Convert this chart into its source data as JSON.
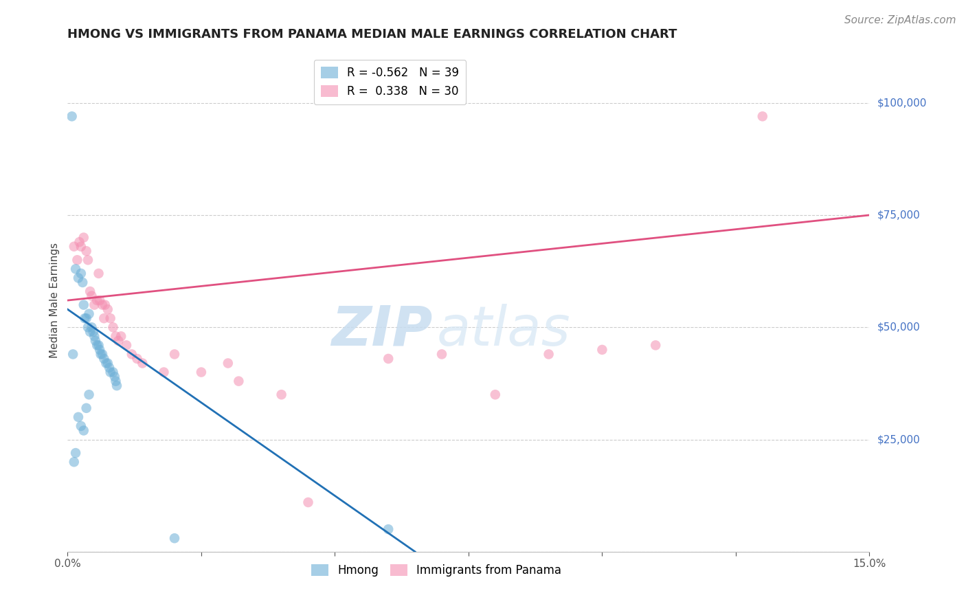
{
  "title": "HMONG VS IMMIGRANTS FROM PANAMA MEDIAN MALE EARNINGS CORRELATION CHART",
  "source": "Source: ZipAtlas.com",
  "ylabel_label": "Median Male Earnings",
  "xlim": [
    0.0,
    0.15
  ],
  "ylim": [
    0,
    112000
  ],
  "xticks": [
    0.0,
    0.025,
    0.05,
    0.075,
    0.1,
    0.125,
    0.15
  ],
  "xticklabels": [
    "0.0%",
    "",
    "",
    "",
    "",
    "",
    "15.0%"
  ],
  "ytick_values": [
    0,
    25000,
    50000,
    75000,
    100000
  ],
  "ytick_labels": [
    "",
    "$25,000",
    "$50,000",
    "$75,000",
    "$100,000"
  ],
  "watermark_zip": "ZIP",
  "watermark_atlas": "atlas",
  "hmong_color": "#6baed6",
  "panama_color": "#f48fb1",
  "hmong_scatter": [
    [
      0.0008,
      97000
    ],
    [
      0.0015,
      63000
    ],
    [
      0.002,
      61000
    ],
    [
      0.0025,
      62000
    ],
    [
      0.0028,
      60000
    ],
    [
      0.003,
      55000
    ],
    [
      0.0032,
      52000
    ],
    [
      0.0035,
      52000
    ],
    [
      0.0038,
      50000
    ],
    [
      0.004,
      53000
    ],
    [
      0.0042,
      49000
    ],
    [
      0.0045,
      50000
    ],
    [
      0.0048,
      49000
    ],
    [
      0.005,
      48000
    ],
    [
      0.0052,
      47000
    ],
    [
      0.0055,
      46000
    ],
    [
      0.0058,
      46000
    ],
    [
      0.006,
      45000
    ],
    [
      0.0062,
      44000
    ],
    [
      0.0065,
      44000
    ],
    [
      0.0068,
      43000
    ],
    [
      0.0072,
      42000
    ],
    [
      0.0075,
      42000
    ],
    [
      0.0078,
      41000
    ],
    [
      0.008,
      40000
    ],
    [
      0.0085,
      40000
    ],
    [
      0.0088,
      39000
    ],
    [
      0.009,
      38000
    ],
    [
      0.0092,
      37000
    ],
    [
      0.0015,
      22000
    ],
    [
      0.0012,
      20000
    ],
    [
      0.002,
      30000
    ],
    [
      0.0025,
      28000
    ],
    [
      0.003,
      27000
    ],
    [
      0.0035,
      32000
    ],
    [
      0.004,
      35000
    ],
    [
      0.001,
      44000
    ],
    [
      0.06,
      5000
    ],
    [
      0.02,
      3000
    ]
  ],
  "panama_scatter": [
    [
      0.0012,
      68000
    ],
    [
      0.0018,
      65000
    ],
    [
      0.0022,
      69000
    ],
    [
      0.0025,
      68000
    ],
    [
      0.003,
      70000
    ],
    [
      0.0035,
      67000
    ],
    [
      0.0038,
      65000
    ],
    [
      0.0042,
      58000
    ],
    [
      0.0045,
      57000
    ],
    [
      0.005,
      55000
    ],
    [
      0.0055,
      56000
    ],
    [
      0.0058,
      62000
    ],
    [
      0.006,
      56000
    ],
    [
      0.0065,
      55000
    ],
    [
      0.0068,
      52000
    ],
    [
      0.007,
      55000
    ],
    [
      0.0075,
      54000
    ],
    [
      0.008,
      52000
    ],
    [
      0.0085,
      50000
    ],
    [
      0.009,
      48000
    ],
    [
      0.0095,
      47000
    ],
    [
      0.01,
      48000
    ],
    [
      0.011,
      46000
    ],
    [
      0.012,
      44000
    ],
    [
      0.013,
      43000
    ],
    [
      0.014,
      42000
    ],
    [
      0.018,
      40000
    ],
    [
      0.02,
      44000
    ],
    [
      0.025,
      40000
    ],
    [
      0.03,
      42000
    ],
    [
      0.032,
      38000
    ],
    [
      0.04,
      35000
    ],
    [
      0.06,
      43000
    ],
    [
      0.07,
      44000
    ],
    [
      0.08,
      35000
    ],
    [
      0.09,
      44000
    ],
    [
      0.1,
      45000
    ],
    [
      0.11,
      46000
    ],
    [
      0.13,
      97000
    ],
    [
      0.045,
      11000
    ]
  ],
  "hmong_line": {
    "x0": 0.0,
    "y0": 54000,
    "x1": 0.065,
    "y1": 0
  },
  "panama_line": {
    "x0": 0.0,
    "y0": 56000,
    "x1": 0.15,
    "y1": 75000
  },
  "hmong_line_color": "#2171b5",
  "panama_line_color": "#e05080",
  "title_fontsize": 13,
  "source_fontsize": 11,
  "axis_label_fontsize": 11,
  "tick_fontsize": 11,
  "legend_fontsize": 12,
  "ytick_color": "#4472c4",
  "xtick_color": "#555555",
  "background_color": "#ffffff"
}
